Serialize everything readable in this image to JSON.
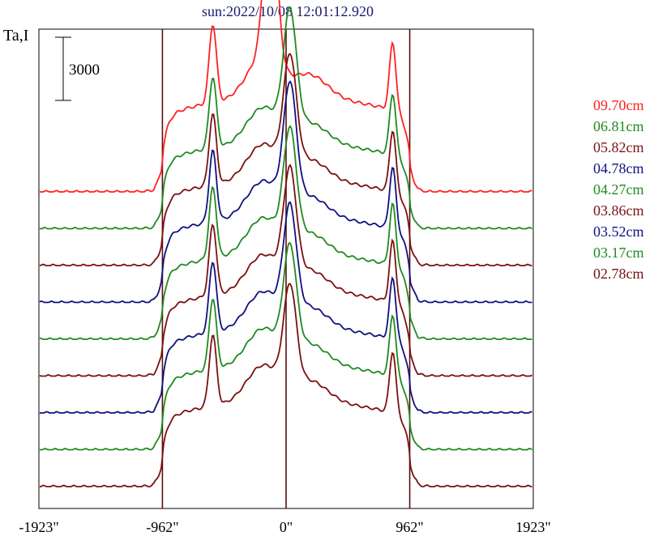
{
  "title": "sun:2022/10/08 12:01:12.920",
  "ylabel": "Ta,I",
  "scale_bar": {
    "label": "3000",
    "value": 3000
  },
  "chart_data": {
    "type": "line",
    "title": "sun:2022/10/08 12:01:12.920",
    "xlabel": "",
    "ylabel": "Ta,I",
    "x_ticks": [
      "-1923\"",
      "-962\"",
      "0\"",
      "962\"",
      "1923\""
    ],
    "x_tick_values": [
      -1923,
      -962,
      0,
      962,
      1923
    ],
    "xlim": [
      -1923,
      1923
    ],
    "vertical_lines": [
      -962,
      0,
      962
    ],
    "offset_step": 3000,
    "legend_position": "right",
    "series": [
      {
        "name": "09.70cm",
        "color": "#ff2020",
        "offset": 8,
        "peak": 1.0
      },
      {
        "name": "06.81cm",
        "color": "#208a20",
        "offset": 7,
        "peak": 0.78
      },
      {
        "name": "05.82cm",
        "color": "#7a1010",
        "offset": 6,
        "peak": 0.72
      },
      {
        "name": "04.78cm",
        "color": "#101080",
        "offset": 5,
        "peak": 0.78
      },
      {
        "name": "04.27cm",
        "color": "#208a20",
        "offset": 4,
        "peak": 0.72
      },
      {
        "name": "03.86cm",
        "color": "#7a1010",
        "offset": 3,
        "peak": 0.7
      },
      {
        "name": "03.52cm",
        "color": "#101080",
        "offset": 2,
        "peak": 0.7
      },
      {
        "name": "03.17cm",
        "color": "#208a20",
        "offset": 1,
        "peak": 0.68
      },
      {
        "name": "02.78cm",
        "color": "#7a1010",
        "offset": 0,
        "peak": 0.66
      }
    ]
  }
}
